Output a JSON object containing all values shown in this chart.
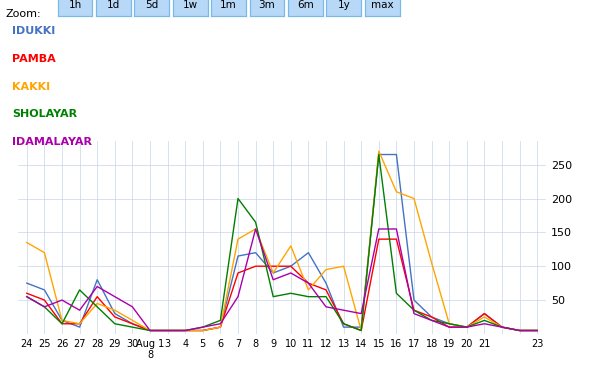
{
  "series": {
    "IDUKKI": {
      "color": "#4472C4",
      "values": [
        75,
        65,
        20,
        10,
        80,
        30,
        15,
        5,
        5,
        5,
        5,
        10,
        115,
        120,
        90,
        100,
        120,
        75,
        10,
        10,
        265,
        265,
        50,
        25,
        15,
        10,
        30,
        10,
        5,
        5
      ]
    },
    "PAMBA": {
      "color": "#FF0000",
      "values": [
        60,
        50,
        15,
        15,
        55,
        25,
        15,
        5,
        5,
        5,
        5,
        10,
        90,
        100,
        100,
        100,
        75,
        65,
        15,
        5,
        140,
        140,
        35,
        25,
        10,
        10,
        30,
        10,
        5,
        5
      ]
    },
    "KAKKI": {
      "color": "#FFA500",
      "values": [
        135,
        120,
        20,
        15,
        45,
        35,
        20,
        5,
        5,
        5,
        5,
        10,
        140,
        155,
        90,
        130,
        65,
        95,
        100,
        5,
        270,
        210,
        200,
        105,
        15,
        10,
        25,
        10,
        5,
        5
      ]
    },
    "SHOLAYAR": {
      "color": "#008000",
      "values": [
        55,
        40,
        15,
        65,
        40,
        15,
        10,
        5,
        5,
        5,
        10,
        20,
        200,
        165,
        55,
        60,
        55,
        55,
        15,
        5,
        265,
        60,
        35,
        20,
        15,
        10,
        20,
        10,
        5,
        5
      ]
    },
    "IDAMALAYAR": {
      "color": "#AA00AA",
      "values": [
        55,
        40,
        50,
        35,
        70,
        55,
        40,
        5,
        5,
        5,
        10,
        15,
        55,
        155,
        80,
        90,
        75,
        40,
        35,
        30,
        155,
        155,
        30,
        20,
        10,
        10,
        15,
        10,
        5,
        5
      ]
    }
  },
  "x_tick_labels": [
    "24",
    "25",
    "26",
    "27",
    "28",
    "29",
    "30",
    "Aug 1\n8",
    "3",
    "4",
    "5",
    "6",
    "7",
    "8",
    "9",
    "10",
    "11",
    "12",
    "13",
    "14",
    "15",
    "16",
    "17",
    "18",
    "19",
    "20",
    "21",
    "",
    "",
    "23"
  ],
  "ylim": [
    0,
    285
  ],
  "yticks": [
    50,
    100,
    150,
    200,
    250
  ],
  "zoom_buttons": [
    "1h",
    "1d",
    "5d",
    "1w",
    "1m",
    "3m",
    "6m",
    "1y",
    "max"
  ],
  "legend_names": [
    "IDUKKI",
    "PAMBA",
    "KAKKI",
    "SHOLAYAR",
    "IDAMALAYAR"
  ],
  "legend_colors": [
    "#4472C4",
    "#FF0000",
    "#FFA500",
    "#008000",
    "#AA00AA"
  ],
  "background_color": "#ffffff",
  "grid_color": "#c8d4e8"
}
